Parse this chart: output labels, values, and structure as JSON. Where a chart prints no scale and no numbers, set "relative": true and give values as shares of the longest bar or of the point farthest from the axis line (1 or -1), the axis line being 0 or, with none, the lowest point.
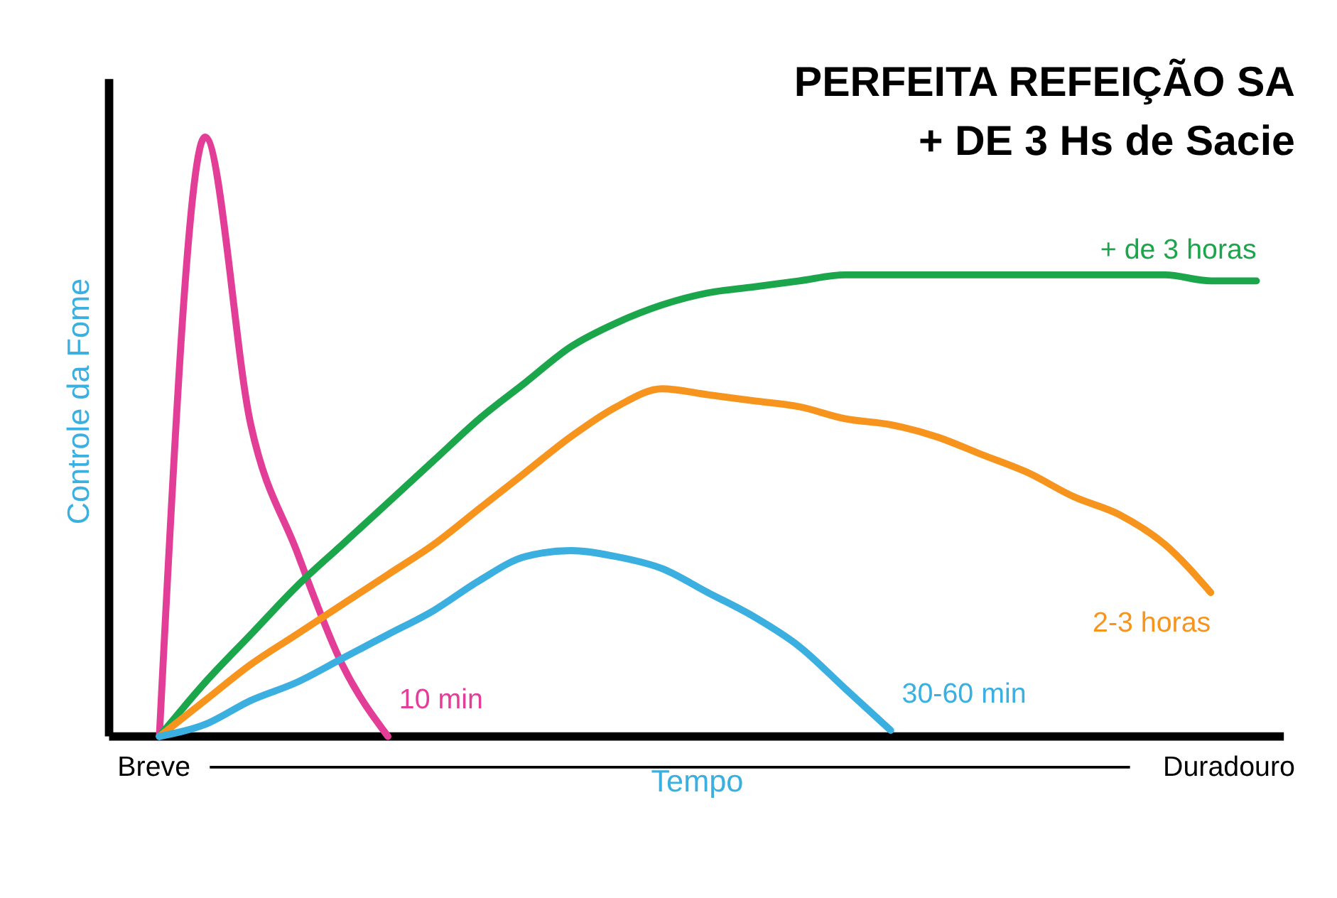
{
  "chart_data": {
    "type": "line",
    "relative": true,
    "title": [
      "PERFEITA REFEIÇÃO SA",
      "+ DE 3 Hs de Sacie"
    ],
    "xlabel": "Tempo",
    "ylabel": "Controle da Fome",
    "annotations": [
      "Breve",
      "Duradouro"
    ],
    "categories": [
      null,
      null,
      null,
      null,
      null,
      null,
      null,
      null,
      null,
      null,
      null,
      null,
      null,
      null,
      null,
      null,
      null,
      null,
      null,
      null,
      null,
      null,
      null,
      null,
      null
    ],
    "series": [
      {
        "name": "10 min",
        "color": "#e23d97",
        "values": [
          0,
          1,
          0.52,
          0.31,
          0.12,
          0,
          null,
          null,
          null,
          null,
          null,
          null,
          null,
          null,
          null,
          null,
          null,
          null,
          null,
          null,
          null,
          null,
          null,
          null,
          null
        ]
      },
      {
        "name": "+ de 3 horas",
        "color": "#1ca64b",
        "values": [
          0,
          0.09,
          0.17,
          0.25,
          0.32,
          0.39,
          0.46,
          0.53,
          0.59,
          0.65,
          0.69,
          0.72,
          0.74,
          0.75,
          0.76,
          0.77,
          0.77,
          0.77,
          0.77,
          0.77,
          0.77,
          0.77,
          0.77,
          0.76,
          0.76
        ]
      },
      {
        "name": "2-3 horas",
        "color": "#f7941d",
        "values": [
          0,
          0.06,
          0.12,
          0.17,
          0.22,
          0.27,
          0.32,
          0.38,
          0.44,
          0.5,
          0.55,
          0.58,
          0.57,
          0.56,
          0.55,
          0.53,
          0.52,
          0.5,
          0.47,
          0.44,
          0.4,
          0.37,
          0.32,
          0.24,
          null
        ]
      },
      {
        "name": "30-60 min",
        "color": "#3bb0e0",
        "values": [
          0,
          0.02,
          0.06,
          0.09,
          0.13,
          0.17,
          0.21,
          0.26,
          0.3,
          0.31,
          0.3,
          0.28,
          0.24,
          0.2,
          0.15,
          0.08,
          0.01,
          null,
          null,
          null,
          null,
          null,
          null,
          null,
          null
        ]
      }
    ],
    "grid": false,
    "marker": "none",
    "line_style": "solid"
  }
}
